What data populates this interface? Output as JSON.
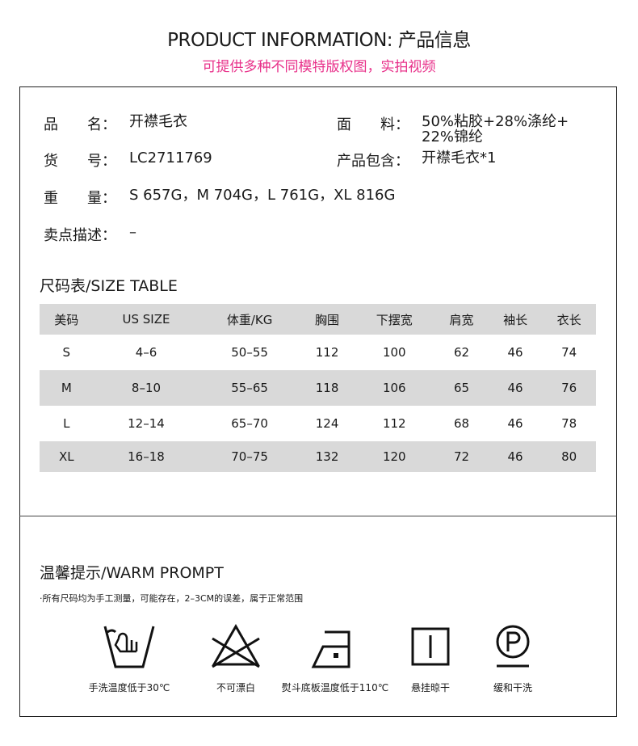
{
  "header": {
    "title": "PRODUCT INFORMATION: 产品信息",
    "subtitle": "可提供多种不同模特版权图，实拍视频"
  },
  "info": {
    "name_label": "品　　名：",
    "name": "开襟毛衣",
    "fabric_label": "面　　料：",
    "fabric_line1": "50%粘胶+28%涤纶+",
    "fabric_line2": "22%锦纶",
    "sku_label": "货　　号：",
    "sku": "LC2711769",
    "includes_label": "产品包含：",
    "includes": "开襟毛衣*1",
    "weight_label": "重　　量：",
    "weight": "S 657G，M 704G，L 761G，XL 816G",
    "selling_label": "卖点描述：",
    "selling": "–"
  },
  "size_table": {
    "title": "尺码表/SIZE TABLE",
    "headers": [
      "美码",
      "US SIZE",
      "体重/KG",
      "胸围",
      "下摆宽",
      "肩宽",
      "袖长",
      "衣长"
    ],
    "rows": [
      [
        "S",
        "4–6",
        "50–55",
        "112",
        "100",
        "62",
        "46",
        "74"
      ],
      [
        "M",
        "8–10",
        "55–65",
        "118",
        "106",
        "65",
        "46",
        "76"
      ],
      [
        "L",
        "12–14",
        "65–70",
        "124",
        "112",
        "68",
        "46",
        "78"
      ],
      [
        "XL",
        "16–18",
        "70–75",
        "132",
        "120",
        "72",
        "46",
        "80"
      ]
    ]
  },
  "prompt": {
    "title": "温馨提示/WARM PROMPT",
    "note": "·所有尺码均为手工测量，可能存在，2–3CM的误差，属于正常范围",
    "care": [
      {
        "icon": "hand-wash-icon",
        "label": "手洗温度低于30℃"
      },
      {
        "icon": "no-bleach-icon",
        "label": "不可漂白"
      },
      {
        "icon": "iron-icon",
        "label": "熨斗底板温度低于110℃"
      },
      {
        "icon": "hang-dry-icon",
        "label": "悬挂晾干"
      },
      {
        "icon": "dry-clean-p-icon",
        "label": "缓和干洗"
      }
    ]
  },
  "colors": {
    "accent": "#e8318a",
    "row_shade": "#d9d9d9"
  }
}
